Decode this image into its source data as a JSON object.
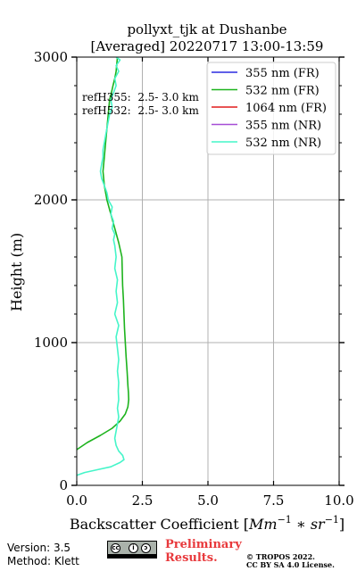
{
  "chart_data": {
    "type": "line",
    "title": "pollyxt_tjk at Dushanbe",
    "subtitle": "[Averaged] 20220717 13:00-13:59",
    "xlabel": "Backscatter Coefficient [$Mm^{-1}*sr^{-1}$]",
    "xlabel_text": "Backscatter Coefficient [",
    "xlabel_unit": "Mm",
    "xlabel_exp1": "−1",
    "xlabel_mult": " ∗ sr",
    "xlabel_exp2": "−1",
    "xlabel_end": "]",
    "ylabel": "Height (m)",
    "xlim": [
      0,
      10
    ],
    "ylim": [
      0,
      3000
    ],
    "xticks": [
      0,
      2.5,
      5,
      7.5,
      10
    ],
    "xtick_labels": [
      "0.0",
      "2.5",
      "5.0",
      "7.5",
      "10.0"
    ],
    "yticks": [
      0,
      1000,
      2000,
      3000
    ],
    "ytick_labels": [
      "0",
      "1000",
      "2000",
      "3000"
    ],
    "grid": true,
    "legend_position": "top-right",
    "annotations": [
      "refH355:  2.5- 3.0 km",
      "refH532:  2.5- 3.0 km"
    ],
    "series": [
      {
        "name": "355 nm (FR)",
        "color": "#2a2ae0",
        "x": [],
        "y": []
      },
      {
        "name": "532 nm (FR)",
        "color": "#1db31d",
        "x": [
          -0.05,
          0.4,
          0.9,
          1.35,
          1.65,
          1.85,
          1.95,
          1.98,
          1.97,
          1.95,
          1.92,
          1.88,
          1.85,
          1.82,
          1.8,
          1.78,
          1.75,
          1.72,
          1.6,
          1.45,
          1.3,
          1.15,
          1.05,
          1.0,
          1.05,
          1.1,
          1.15,
          1.2,
          1.25,
          1.32,
          1.38,
          1.45,
          1.5,
          1.55
        ],
        "y": [
          250,
          300,
          350,
          400,
          450,
          500,
          550,
          600,
          650,
          700,
          800,
          900,
          1000,
          1100,
          1200,
          1300,
          1400,
          1600,
          1700,
          1800,
          1900,
          2000,
          2100,
          2200,
          2300,
          2400,
          2500,
          2600,
          2700,
          2750,
          2800,
          2850,
          2900,
          3000
        ]
      },
      {
        "name": "1064 nm (FR)",
        "color": "#e01b1b",
        "x": [],
        "y": []
      },
      {
        "name": "355 nm (NR)",
        "color": "#a64dd6",
        "x": [],
        "y": []
      },
      {
        "name": "532 nm (NR)",
        "color": "#45f5c9",
        "x": [
          -0.05,
          0.3,
          0.8,
          1.3,
          1.65,
          1.8,
          1.75,
          1.6,
          1.5,
          1.45,
          1.5,
          1.55,
          1.6,
          1.55,
          1.6,
          1.58,
          1.6,
          1.55,
          1.6,
          1.55,
          1.5,
          1.6,
          1.45,
          1.55,
          1.5,
          1.55,
          1.45,
          1.5,
          1.45,
          1.4,
          1.45,
          1.35,
          1.4,
          1.3,
          1.35,
          1.2,
          1.15,
          1.05,
          0.95,
          0.9,
          0.95,
          1.0,
          1.0,
          1.05,
          1.1,
          1.15,
          1.2,
          1.25,
          1.35,
          1.3,
          1.4,
          1.5,
          1.45,
          1.6,
          1.5,
          1.65,
          1.5
        ],
        "y": [
          70,
          90,
          110,
          130,
          160,
          180,
          210,
          240,
          280,
          330,
          380,
          430,
          480,
          540,
          600,
          660,
          720,
          800,
          880,
          960,
          1040,
          1120,
          1200,
          1280,
          1360,
          1440,
          1520,
          1600,
          1680,
          1720,
          1760,
          1800,
          1850,
          1900,
          1950,
          2000,
          2050,
          2100,
          2150,
          2200,
          2250,
          2300,
          2350,
          2400,
          2450,
          2500,
          2550,
          2600,
          2650,
          2700,
          2750,
          2800,
          2850,
          2900,
          2940,
          2980,
          3000
        ]
      }
    ]
  },
  "footer": {
    "version": "Version: 3.5",
    "method": "Method: Klett",
    "preliminary_line1": "Preliminary",
    "preliminary_line2": "Results.",
    "copyright_line1": "© TROPOS 2022.",
    "copyright_line2": "CC BY SA 4.0 License.",
    "cc_badge_symbols": [
      "cc",
      "i",
      "ↄ"
    ]
  }
}
